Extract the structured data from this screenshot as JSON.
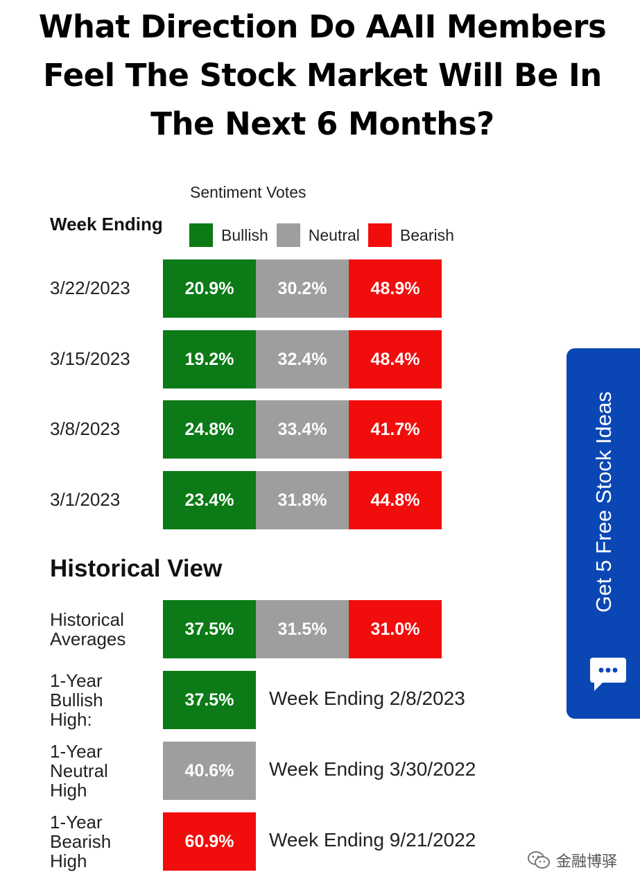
{
  "title_lines": [
    "What Direction Do AAII Members",
    "Feel The Stock Market Will Be In",
    "The Next 6 Months?"
  ],
  "header": {
    "sentiment_label": "Sentiment Votes",
    "week_ending": "Week Ending"
  },
  "legend": [
    {
      "label": "Bullish",
      "color": "#0c7a16"
    },
    {
      "label": "Neutral",
      "color": "#9e9e9e"
    },
    {
      "label": "Bearish",
      "color": "#f20d0d"
    }
  ],
  "weeks": [
    {
      "date": "3/22/2023",
      "bullish": "20.9%",
      "neutral": "30.2%",
      "bearish": "48.9%"
    },
    {
      "date": "3/15/2023",
      "bullish": "19.2%",
      "neutral": "32.4%",
      "bearish": "48.4%"
    },
    {
      "date": "3/8/2023",
      "bullish": "24.8%",
      "neutral": "33.4%",
      "bearish": "41.7%"
    },
    {
      "date": "3/1/2023",
      "bullish": "23.4%",
      "neutral": "31.8%",
      "bearish": "44.8%"
    }
  ],
  "historical": {
    "title": "Historical View",
    "averages": {
      "label": "Historical\nAverages",
      "bullish": "37.5%",
      "neutral": "31.5%",
      "bearish": "31.0%"
    },
    "highs": [
      {
        "label": "1-Year\nBullish\nHigh:",
        "value": "37.5%",
        "note": "Week Ending 2/8/2023",
        "color": "#0c7a16"
      },
      {
        "label": "1-Year\nNeutral\nHigh",
        "value": "40.6%",
        "note": "Week Ending 3/30/2022",
        "color": "#9e9e9e"
      },
      {
        "label": "1-Year\nBearish\nHigh",
        "value": "60.9%",
        "note": "Week Ending 9/21/2022",
        "color": "#f20d0d"
      }
    ]
  },
  "side_tab": {
    "label": "Get 5 Free Stock Ideas",
    "icon": "chat-bubble-icon",
    "color": "#0b47b4"
  },
  "watermark": {
    "label": "金融博驿",
    "icon": "wechat-icon"
  }
}
